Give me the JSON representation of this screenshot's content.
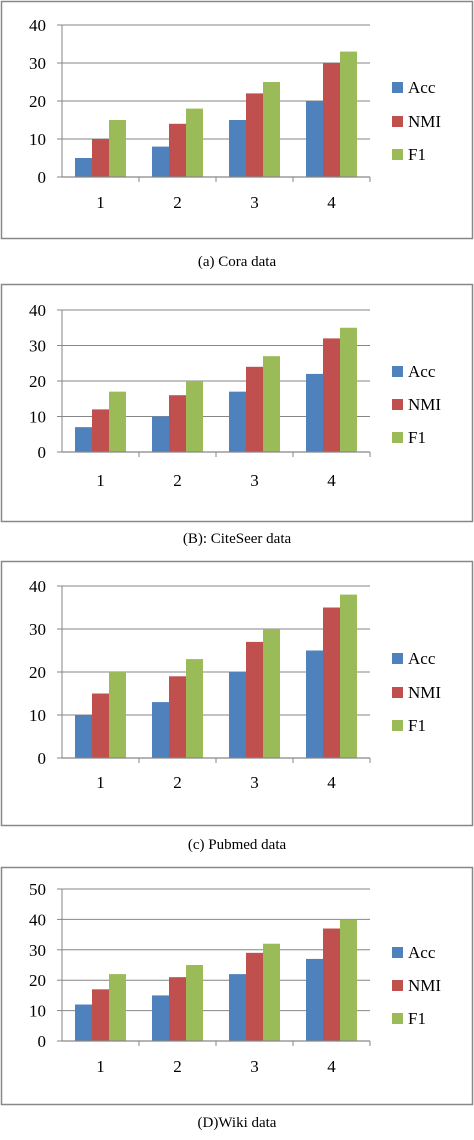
{
  "colors": {
    "Acc": "#4f81bd",
    "NMI": "#c0504d",
    "F1": "#9bbb59",
    "grid": "#868686",
    "frame": "#888888"
  },
  "chart_data": [
    {
      "type": "bar",
      "caption": "(a) Cora data",
      "categories": [
        "1",
        "2",
        "3",
        "4"
      ],
      "ylim": [
        0,
        40
      ],
      "yticks": [
        "0",
        "10",
        "20",
        "30",
        "40"
      ],
      "grid": true,
      "legend": "right",
      "series": [
        {
          "name": "Acc",
          "values": [
            5,
            8,
            15,
            20
          ]
        },
        {
          "name": "NMI",
          "values": [
            10,
            14,
            22,
            30
          ]
        },
        {
          "name": "F1",
          "values": [
            15,
            18,
            25,
            33
          ]
        }
      ]
    },
    {
      "type": "bar",
      "caption": "(B): CiteSeer data",
      "categories": [
        "1",
        "2",
        "3",
        "4"
      ],
      "ylim": [
        0,
        40
      ],
      "yticks": [
        "0",
        "10",
        "20",
        "30",
        "40"
      ],
      "grid": true,
      "legend": "right",
      "series": [
        {
          "name": "Acc",
          "values": [
            7,
            10,
            17,
            22
          ]
        },
        {
          "name": "NMI",
          "values": [
            12,
            16,
            24,
            32
          ]
        },
        {
          "name": "F1",
          "values": [
            17,
            20,
            27,
            35
          ]
        }
      ]
    },
    {
      "type": "bar",
      "caption": "(c) Pubmed data",
      "categories": [
        "1",
        "2",
        "3",
        "4"
      ],
      "ylim": [
        0,
        40
      ],
      "yticks": [
        "0",
        "10",
        "20",
        "30",
        "40"
      ],
      "grid": true,
      "legend": "right",
      "series": [
        {
          "name": "Acc",
          "values": [
            10,
            13,
            20,
            25
          ]
        },
        {
          "name": "NMI",
          "values": [
            15,
            19,
            27,
            35
          ]
        },
        {
          "name": "F1",
          "values": [
            20,
            23,
            30,
            38
          ]
        }
      ]
    },
    {
      "type": "bar",
      "caption": "(D)Wiki data",
      "categories": [
        "1",
        "2",
        "3",
        "4"
      ],
      "ylim": [
        0,
        50
      ],
      "yticks": [
        "0",
        "10",
        "20",
        "30",
        "40",
        "50"
      ],
      "grid": true,
      "legend": "right",
      "series": [
        {
          "name": "Acc",
          "values": [
            12,
            15,
            22,
            27
          ]
        },
        {
          "name": "NMI",
          "values": [
            17,
            21,
            29,
            37
          ]
        },
        {
          "name": "F1",
          "values": [
            22,
            25,
            32,
            40
          ]
        }
      ]
    }
  ]
}
